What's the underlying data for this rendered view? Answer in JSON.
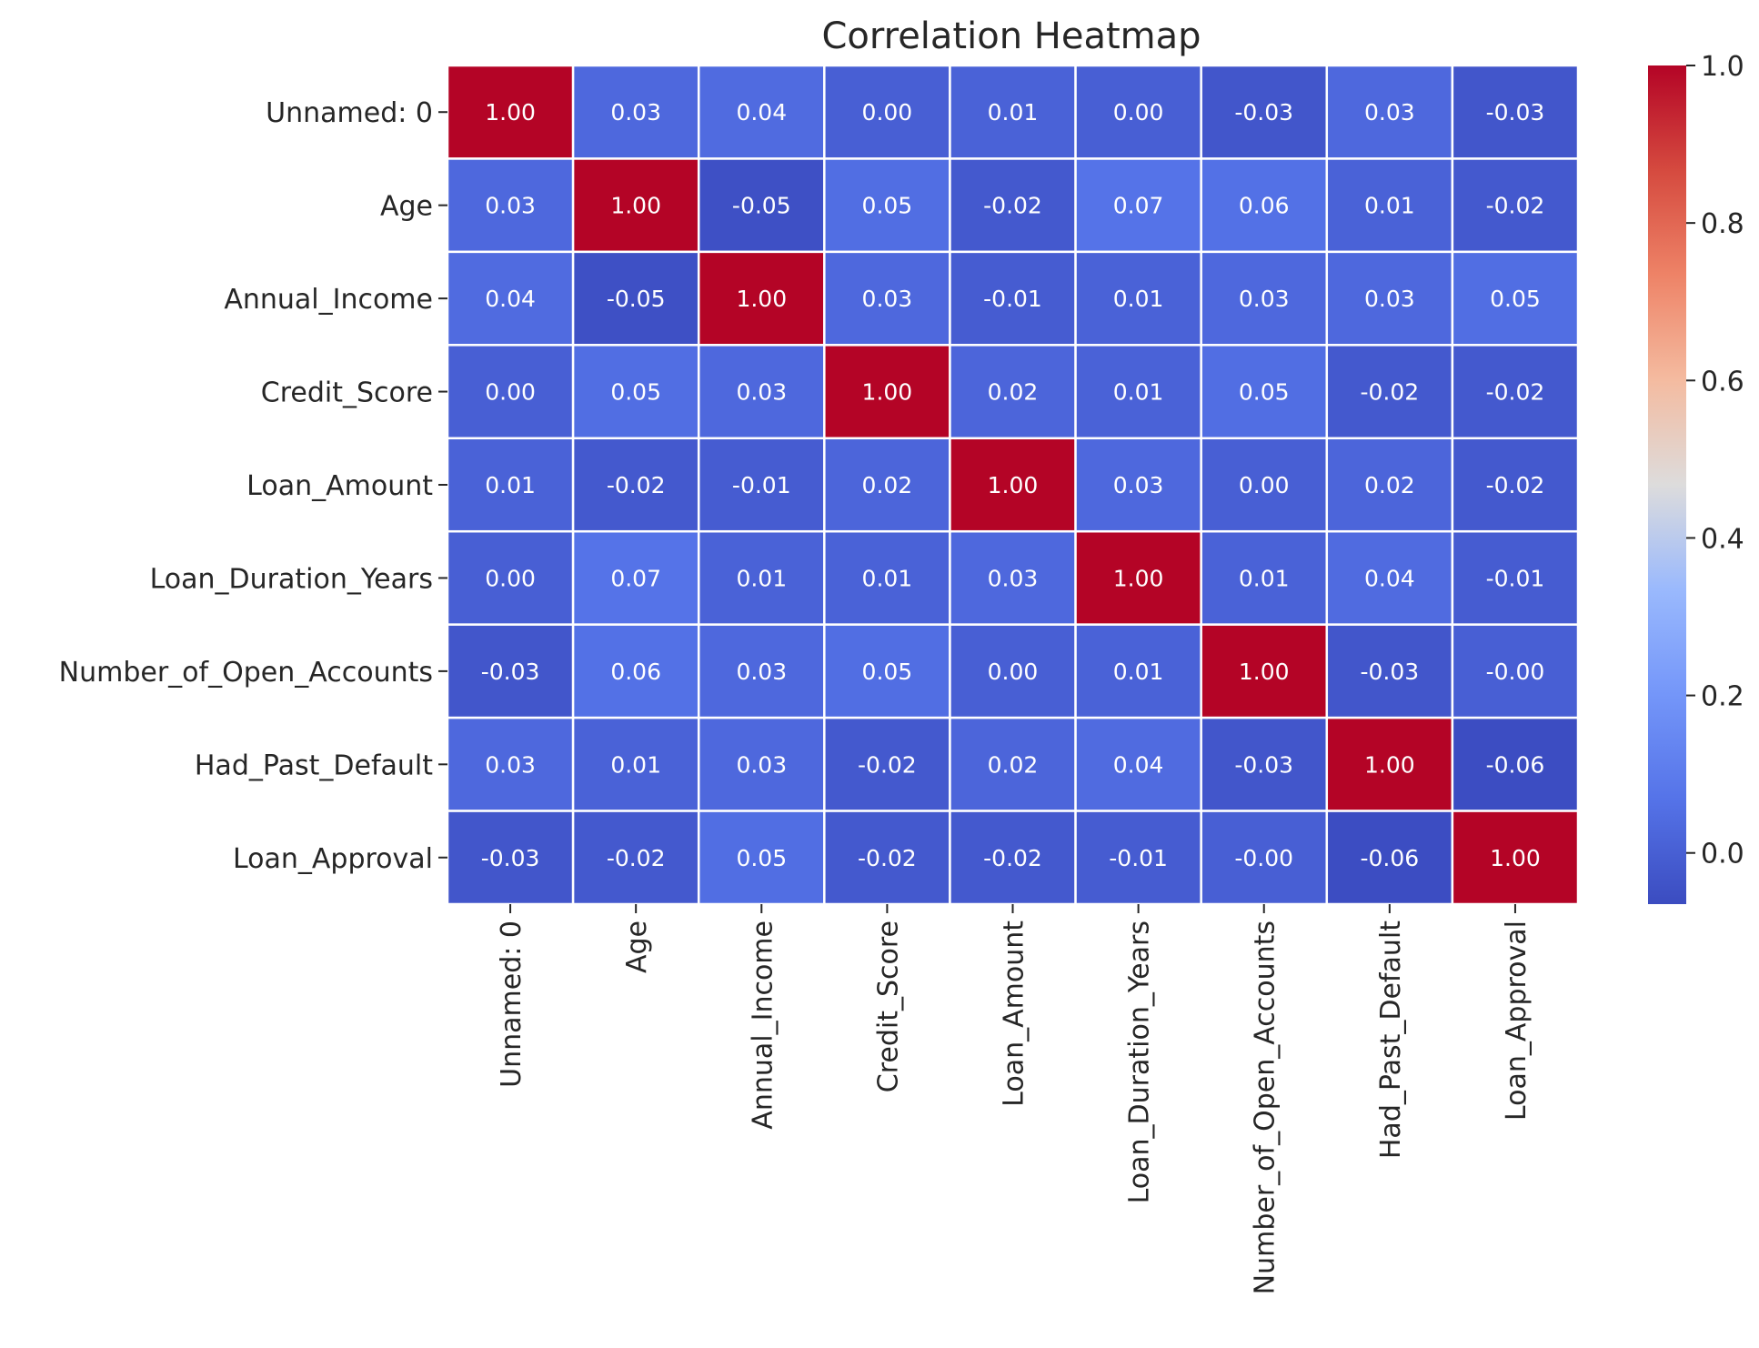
{
  "chart_data": {
    "type": "heatmap",
    "title": "Correlation Heatmap",
    "labels": [
      "Unnamed: 0",
      "Age",
      "Annual_Income",
      "Credit_Score",
      "Loan_Amount",
      "Loan_Duration_Years",
      "Number_of_Open_Accounts",
      "Had_Past_Default",
      "Loan_Approval"
    ],
    "matrix": [
      [
        1.0,
        0.03,
        0.04,
        0.0,
        0.01,
        0.0,
        -0.03,
        0.03,
        -0.03
      ],
      [
        0.03,
        1.0,
        -0.05,
        0.05,
        -0.02,
        0.07,
        0.06,
        0.01,
        -0.02
      ],
      [
        0.04,
        -0.05,
        1.0,
        0.03,
        -0.01,
        0.01,
        0.03,
        0.03,
        0.05
      ],
      [
        0.0,
        0.05,
        0.03,
        1.0,
        0.02,
        0.01,
        0.05,
        -0.02,
        -0.02
      ],
      [
        0.01,
        -0.02,
        -0.01,
        0.02,
        1.0,
        0.03,
        0.0,
        0.02,
        -0.02
      ],
      [
        0.0,
        0.07,
        0.01,
        0.01,
        0.03,
        1.0,
        0.01,
        0.04,
        -0.01
      ],
      [
        -0.03,
        0.06,
        0.03,
        0.05,
        0.0,
        0.01,
        1.0,
        -0.03,
        -0.0
      ],
      [
        0.03,
        0.01,
        0.03,
        -0.02,
        0.02,
        0.04,
        -0.03,
        1.0,
        -0.06
      ],
      [
        -0.03,
        -0.02,
        0.05,
        -0.02,
        -0.02,
        -0.01,
        -0.0,
        -0.06,
        1.0
      ]
    ],
    "display_values": [
      [
        "1.00",
        "0.03",
        "0.04",
        "0.00",
        "0.01",
        "0.00",
        "-0.03",
        "0.03",
        "-0.03"
      ],
      [
        "0.03",
        "1.00",
        "-0.05",
        "0.05",
        "-0.02",
        "0.07",
        "0.06",
        "0.01",
        "-0.02"
      ],
      [
        "0.04",
        "-0.05",
        "1.00",
        "0.03",
        "-0.01",
        "0.01",
        "0.03",
        "0.03",
        "0.05"
      ],
      [
        "0.00",
        "0.05",
        "0.03",
        "1.00",
        "0.02",
        "0.01",
        "0.05",
        "-0.02",
        "-0.02"
      ],
      [
        "0.01",
        "-0.02",
        "-0.01",
        "0.02",
        "1.00",
        "0.03",
        "0.00",
        "0.02",
        "-0.02"
      ],
      [
        "0.00",
        "0.07",
        "0.01",
        "0.01",
        "0.03",
        "1.00",
        "0.01",
        "0.04",
        "-0.01"
      ],
      [
        "-0.03",
        "0.06",
        "0.03",
        "0.05",
        "0.00",
        "0.01",
        "1.00",
        "-0.03",
        "-0.00"
      ],
      [
        "0.03",
        "0.01",
        "0.03",
        "-0.02",
        "0.02",
        "0.04",
        "-0.03",
        "1.00",
        "-0.06"
      ],
      [
        "-0.03",
        "-0.02",
        "0.05",
        "-0.02",
        "-0.02",
        "-0.01",
        "-0.00",
        "-0.06",
        "1.00"
      ]
    ],
    "colorbar": {
      "min": -0.065,
      "max": 1.0,
      "ticks": [
        "0.0",
        "0.2",
        "0.4",
        "0.6",
        "0.8",
        "1.0"
      ],
      "colormap": "coolwarm"
    },
    "xlabel": "",
    "ylabel": ""
  }
}
